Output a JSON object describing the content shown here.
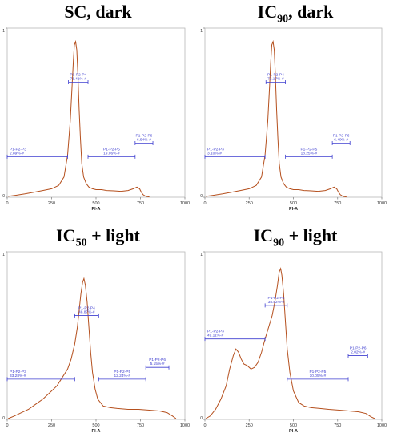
{
  "panels": [
    {
      "title_main": "SC, dark",
      "title_sub": "",
      "title_rest": ""
    },
    {
      "title_main": "IC",
      "title_sub": "90",
      "title_rest": ", dark"
    },
    {
      "title_main": "IC",
      "title_sub": "50",
      "title_rest": " + light"
    },
    {
      "title_main": "IC",
      "title_sub": "90",
      "title_rest": " + light"
    }
  ],
  "chart_data": [
    {
      "type": "line",
      "title": "SC, dark",
      "xlabel": "PI-A",
      "ylabel": "",
      "xlim": [
        0,
        1000
      ],
      "ylim": [
        0,
        1
      ],
      "x_ticks": [
        "0",
        "250",
        "500",
        "750",
        "1000"
      ],
      "y_ticks": [
        "0",
        "1"
      ],
      "line_color": "#b5501e",
      "x": [
        5,
        50,
        100,
        150,
        200,
        250,
        290,
        320,
        340,
        355,
        365,
        372,
        378,
        385,
        392,
        398,
        405,
        412,
        420,
        430,
        445,
        460,
        480,
        500,
        530,
        560,
        600,
        640,
        680,
        710,
        730,
        745,
        755,
        765,
        780,
        800
      ],
      "y": [
        0.005,
        0.012,
        0.02,
        0.03,
        0.04,
        0.05,
        0.07,
        0.12,
        0.25,
        0.45,
        0.65,
        0.8,
        0.9,
        0.92,
        0.87,
        0.72,
        0.52,
        0.35,
        0.2,
        0.12,
        0.08,
        0.06,
        0.05,
        0.045,
        0.045,
        0.04,
        0.038,
        0.035,
        0.04,
        0.05,
        0.06,
        0.05,
        0.03,
        0.015,
        0.005,
        0.002
      ],
      "gates": [
        {
          "label": "P1-P2-P3",
          "value": "2.89%-#",
          "x": [
            0,
            340
          ],
          "y": 0.24
        },
        {
          "label": "P1-P2-P4",
          "value": "71.41%-#",
          "x": [
            345,
            455
          ],
          "y": 0.68
        },
        {
          "label": "P1-P2-P5",
          "value": "19.06%-#",
          "x": [
            455,
            720
          ],
          "y": 0.24
        },
        {
          "label": "P1-P2-P6",
          "value": "6.54%-#",
          "x": [
            720,
            820
          ],
          "y": 0.32
        }
      ]
    },
    {
      "type": "line",
      "title": "IC90, dark",
      "xlabel": "PI-A",
      "ylabel": "",
      "xlim": [
        0,
        1000
      ],
      "ylim": [
        0,
        1
      ],
      "x_ticks": [
        "0",
        "250",
        "500",
        "750",
        "1000"
      ],
      "y_ticks": [
        "0",
        "1"
      ],
      "line_color": "#b5501e",
      "x": [
        5,
        50,
        100,
        150,
        200,
        250,
        290,
        320,
        340,
        355,
        365,
        372,
        378,
        385,
        392,
        398,
        405,
        412,
        420,
        430,
        445,
        460,
        480,
        500,
        530,
        560,
        600,
        640,
        680,
        710,
        730,
        745,
        755,
        765,
        780,
        800
      ],
      "y": [
        0.005,
        0.012,
        0.02,
        0.03,
        0.04,
        0.05,
        0.07,
        0.12,
        0.25,
        0.45,
        0.65,
        0.8,
        0.9,
        0.92,
        0.87,
        0.72,
        0.52,
        0.35,
        0.2,
        0.12,
        0.08,
        0.06,
        0.05,
        0.045,
        0.045,
        0.04,
        0.038,
        0.035,
        0.04,
        0.05,
        0.06,
        0.05,
        0.03,
        0.015,
        0.005,
        0.002
      ],
      "gates": [
        {
          "label": "P1-P2-P3",
          "value": "3.10%-#",
          "x": [
            0,
            340
          ],
          "y": 0.24
        },
        {
          "label": "P1-P2-P4",
          "value": "72.17%-#",
          "x": [
            345,
            455
          ],
          "y": 0.68
        },
        {
          "label": "P1-P2-P5",
          "value": "18.25%-#",
          "x": [
            455,
            720
          ],
          "y": 0.24
        },
        {
          "label": "P1-P2-P6",
          "value": "6.40%-#",
          "x": [
            720,
            820
          ],
          "y": 0.32
        }
      ]
    },
    {
      "type": "line",
      "title": "IC50 + light",
      "xlabel": "PI-A",
      "ylabel": "",
      "xlim": [
        0,
        1000
      ],
      "ylim": [
        0,
        1
      ],
      "x_ticks": [
        "0",
        "250",
        "500",
        "750",
        "1000"
      ],
      "y_ticks": [
        "0",
        "1"
      ],
      "line_color": "#b5501e",
      "x": [
        5,
        40,
        80,
        120,
        160,
        200,
        240,
        280,
        310,
        340,
        360,
        380,
        395,
        405,
        415,
        425,
        432,
        440,
        450,
        460,
        470,
        480,
        495,
        510,
        540,
        580,
        620,
        680,
        740,
        800,
        860,
        900,
        930,
        950
      ],
      "y": [
        0.005,
        0.02,
        0.04,
        0.06,
        0.09,
        0.12,
        0.16,
        0.2,
        0.25,
        0.3,
        0.36,
        0.45,
        0.55,
        0.65,
        0.75,
        0.82,
        0.84,
        0.8,
        0.7,
        0.55,
        0.4,
        0.28,
        0.18,
        0.12,
        0.08,
        0.07,
        0.065,
        0.06,
        0.06,
        0.055,
        0.05,
        0.04,
        0.02,
        0.005
      ],
      "gates": [
        {
          "label": "P1-P2-P3",
          "value": "33.28%-#",
          "x": [
            0,
            380
          ],
          "y": 0.24
        },
        {
          "label": "P1-P2-P4",
          "value": "48.87%-#",
          "x": [
            380,
            515
          ],
          "y": 0.62
        },
        {
          "label": "P1-P2-P5",
          "value": "12.24%-#",
          "x": [
            515,
            780
          ],
          "y": 0.24
        },
        {
          "label": "P1-P2-P6",
          "value": "5.15%-#",
          "x": [
            780,
            910
          ],
          "y": 0.31
        }
      ]
    },
    {
      "type": "line",
      "title": "IC90 + light",
      "xlabel": "PI-A",
      "ylabel": "",
      "xlim": [
        0,
        1000
      ],
      "ylim": [
        0,
        1
      ],
      "x_ticks": [
        "0",
        "250",
        "500",
        "750",
        "1000"
      ],
      "y_ticks": [
        "0",
        "1"
      ],
      "line_color": "#b5501e",
      "x": [
        5,
        30,
        60,
        90,
        120,
        140,
        160,
        175,
        190,
        205,
        220,
        240,
        260,
        280,
        300,
        320,
        340,
        360,
        380,
        395,
        410,
        420,
        428,
        435,
        445,
        455,
        465,
        480,
        500,
        530,
        560,
        600,
        650,
        700,
        760,
        820,
        870,
        910,
        940,
        960
      ],
      "y": [
        0.005,
        0.02,
        0.06,
        0.12,
        0.2,
        0.3,
        0.38,
        0.42,
        0.4,
        0.36,
        0.33,
        0.32,
        0.3,
        0.31,
        0.34,
        0.4,
        0.48,
        0.55,
        0.62,
        0.7,
        0.8,
        0.88,
        0.9,
        0.86,
        0.75,
        0.58,
        0.42,
        0.28,
        0.17,
        0.1,
        0.08,
        0.07,
        0.065,
        0.06,
        0.055,
        0.05,
        0.045,
        0.035,
        0.015,
        0.005
      ],
      "gates": [
        {
          "label": "P1-P2-P3",
          "value": "49.11%-#",
          "x": [
            0,
            340
          ],
          "y": 0.48
        },
        {
          "label": "P1-P2-P4",
          "value": "38.82%-#",
          "x": [
            340,
            465
          ],
          "y": 0.68
        },
        {
          "label": "P1-P2-P5",
          "value": "10.05%-#",
          "x": [
            465,
            810
          ],
          "y": 0.24
        },
        {
          "label": "P1-P2-P6",
          "value": "2.02%-#",
          "x": [
            810,
            920
          ],
          "y": 0.38
        }
      ]
    }
  ]
}
